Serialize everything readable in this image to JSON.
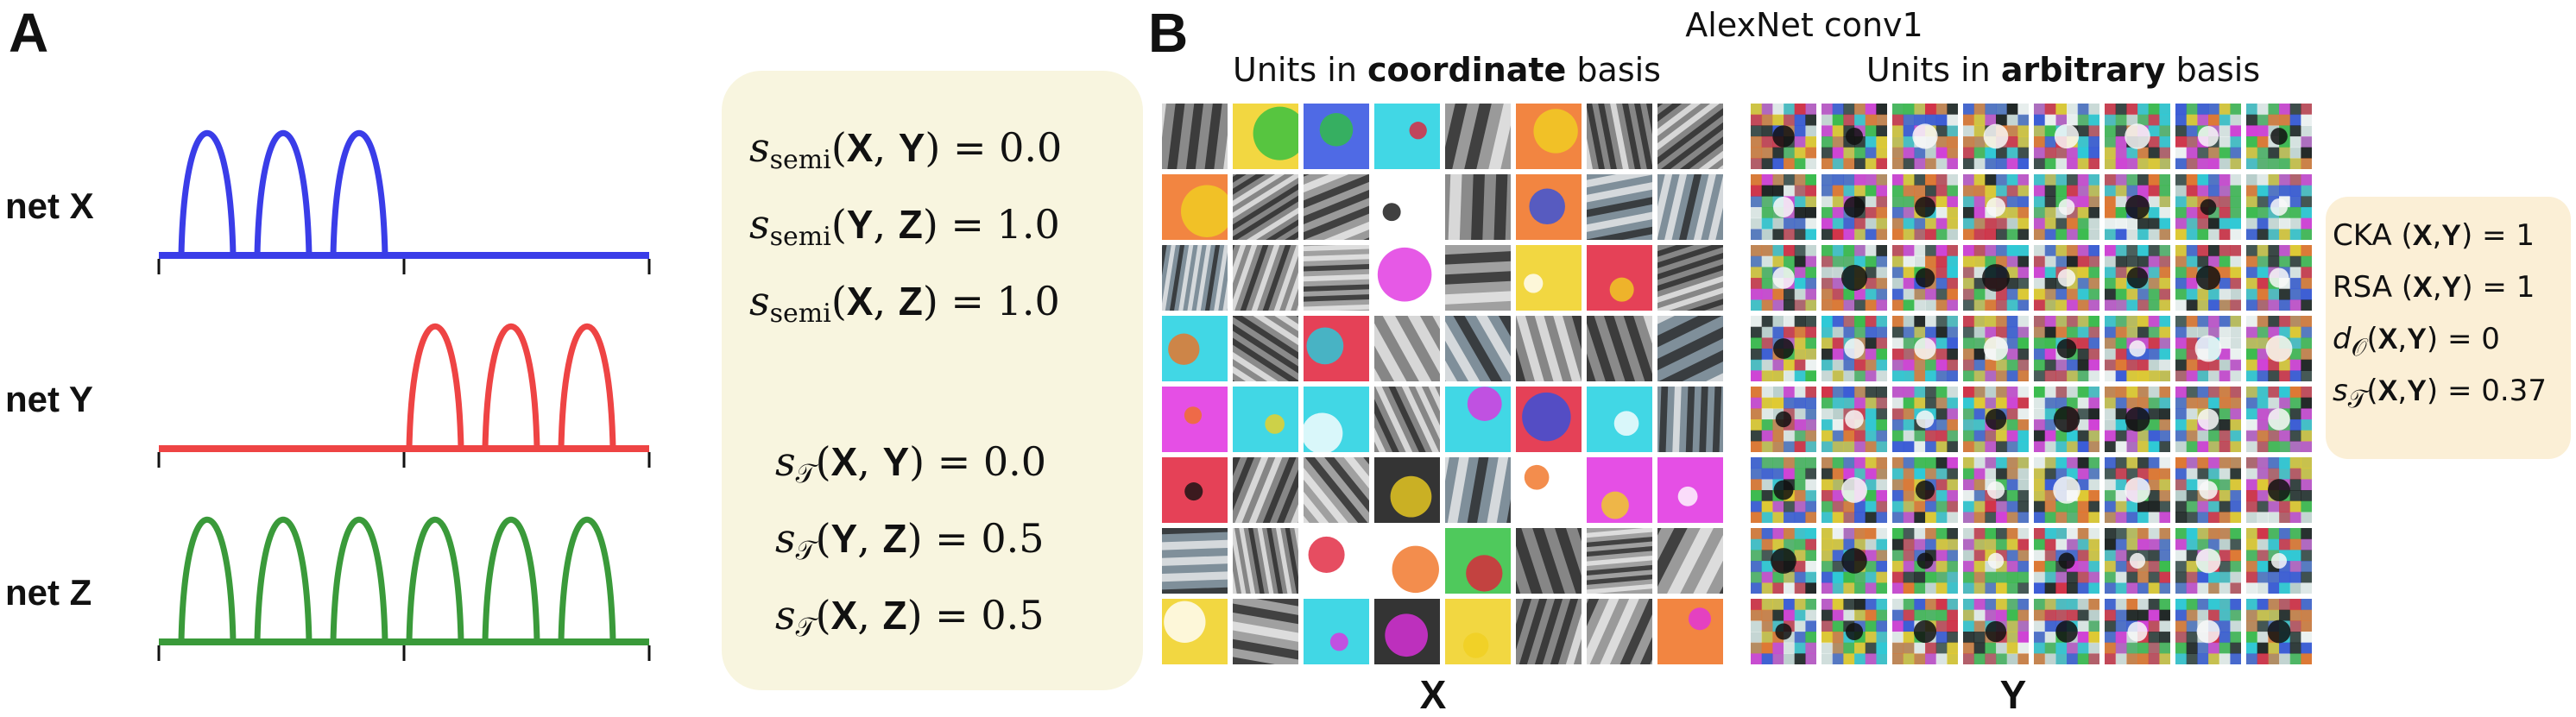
{
  "panel_a": {
    "letter": "A",
    "nets": [
      {
        "label": "net X",
        "color": "#3a3de8",
        "bumps": [
          1,
          2,
          3
        ]
      },
      {
        "label": "net Y",
        "color": "#ee4444",
        "bumps": [
          4,
          5,
          6
        ]
      },
      {
        "label": "net Z",
        "color": "#3a9a3a",
        "bumps": [
          1,
          2,
          3,
          4,
          5,
          6
        ]
      }
    ],
    "equations": [
      {
        "sym": "s",
        "sub": "semi",
        "pair_a": "X",
        "pair_b": "Y",
        "value": "= 0.0"
      },
      {
        "sym": "s",
        "sub": "semi",
        "pair_a": "Y",
        "pair_b": "Z",
        "value": "= 1.0"
      },
      {
        "sym": "s",
        "sub": "semi",
        "pair_a": "X",
        "pair_b": "Z",
        "value": "= 1.0"
      },
      {
        "sym": "s",
        "sub": "𝒯",
        "pair_a": "X",
        "pair_b": "Y",
        "value": "= 0.0"
      },
      {
        "sym": "s",
        "sub": "𝒯",
        "pair_a": "Y",
        "pair_b": "Z",
        "value": "= 0.5"
      },
      {
        "sym": "s",
        "sub": "𝒯",
        "pair_a": "X",
        "pair_b": "Z",
        "value": "= 0.5"
      }
    ],
    "box_color": "#f8f5df"
  },
  "panel_b": {
    "letter": "B",
    "title": "AlexNet conv1",
    "left_heading_pre": "Units in ",
    "left_heading_bold": "coordinate",
    "left_heading_post": " basis",
    "right_heading_pre": "Units in ",
    "right_heading_bold": "arbitrary",
    "right_heading_post": " basis",
    "left_grid_label": "X",
    "right_grid_label": "Y",
    "grid_rows": 8,
    "grid_cols": 8,
    "metrics": [
      {
        "name": "CKA (",
        "a": "X",
        "b": "Y",
        "value": ") = 1"
      },
      {
        "name": "RSA (",
        "a": "X",
        "b": "Y",
        "value": ") = 1"
      },
      {
        "name": "d",
        "sub": "𝒪",
        "open": "(",
        "a": "X",
        "b": "Y",
        "value": ") = 0"
      },
      {
        "name": "s",
        "sub": "𝒯",
        "open": "(",
        "a": "X",
        "b": "Y",
        "value": ") = 0.37"
      }
    ],
    "metrics_box_color": "#fbefd6"
  }
}
